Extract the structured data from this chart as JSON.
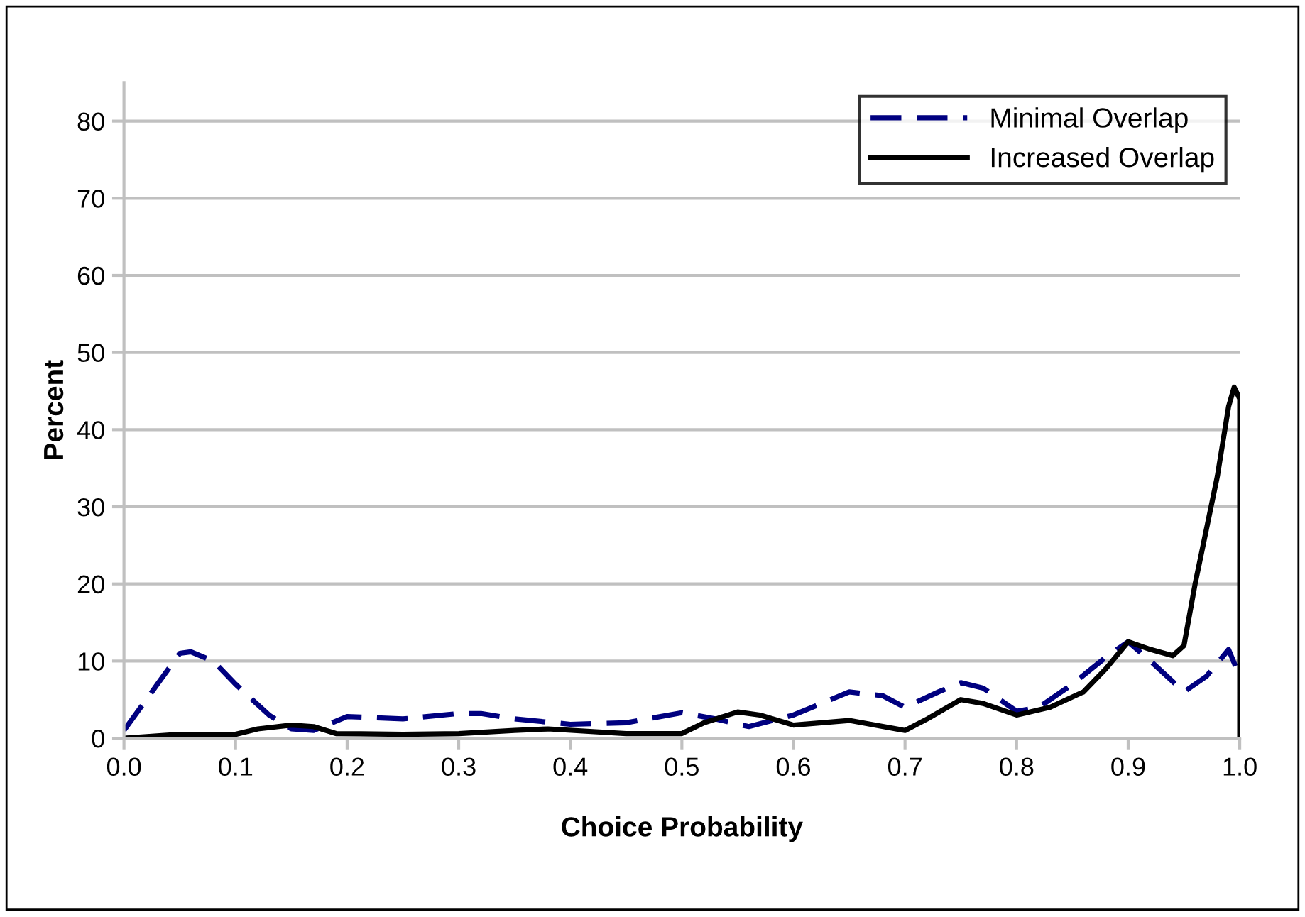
{
  "chart_data": {
    "type": "line",
    "xlabel": "Choice Probability",
    "ylabel": "Percent",
    "xlim": [
      0,
      1
    ],
    "ylim": [
      0,
      85
    ],
    "xticks": [
      {
        "value": 0,
        "label": "0.0"
      },
      {
        "value": 0.1,
        "label": "0.1"
      },
      {
        "value": 0.2,
        "label": "0.2"
      },
      {
        "value": 0.3,
        "label": "0.3"
      },
      {
        "value": 0.4,
        "label": "0.4"
      },
      {
        "value": 0.5,
        "label": "0.5"
      },
      {
        "value": 0.6,
        "label": "0.6"
      },
      {
        "value": 0.7,
        "label": "0.7"
      },
      {
        "value": 0.8,
        "label": "0.8"
      },
      {
        "value": 0.9,
        "label": "0.9"
      },
      {
        "value": 1,
        "label": "1.0"
      }
    ],
    "yticks": [
      0,
      10,
      20,
      30,
      40,
      50,
      60,
      70,
      80
    ],
    "grid": "y",
    "legend": "top right",
    "marker": "none",
    "series": [
      {
        "name": "Minimal Overlap",
        "color": "#000080",
        "line_style": "dashed",
        "x": [
          0,
          0.03,
          0.05,
          0.06,
          0.08,
          0.1,
          0.13,
          0.15,
          0.17,
          0.2,
          0.25,
          0.3,
          0.32,
          0.35,
          0.4,
          0.45,
          0.5,
          0.53,
          0.56,
          0.6,
          0.65,
          0.68,
          0.7,
          0.73,
          0.75,
          0.77,
          0.8,
          0.82,
          0.85,
          0.88,
          0.9,
          0.92,
          0.95,
          0.97,
          0.99,
          1.0
        ],
        "values": [
          1,
          7,
          11,
          11.2,
          10,
          7,
          3,
          1.2,
          1,
          2.8,
          2.5,
          3.2,
          3.2,
          2.5,
          1.8,
          2,
          3.3,
          2.5,
          1.5,
          3,
          6,
          5.5,
          4,
          6,
          7.2,
          6.5,
          3.5,
          4,
          7,
          10.5,
          12.5,
          10,
          6,
          8,
          11.5,
          8
        ]
      },
      {
        "name": "Increased Overlap",
        "color": "#000000",
        "line_style": "solid",
        "x": [
          0,
          0.05,
          0.1,
          0.12,
          0.15,
          0.17,
          0.19,
          0.25,
          0.3,
          0.35,
          0.38,
          0.45,
          0.5,
          0.52,
          0.55,
          0.57,
          0.6,
          0.65,
          0.7,
          0.72,
          0.75,
          0.77,
          0.8,
          0.83,
          0.86,
          0.88,
          0.9,
          0.92,
          0.94,
          0.95,
          0.96,
          0.98,
          0.99,
          0.995,
          1.0,
          1.0
        ],
        "values": [
          0,
          0.5,
          0.5,
          1.2,
          1.7,
          1.5,
          0.6,
          0.5,
          0.6,
          1,
          1.2,
          0.6,
          0.6,
          2,
          3.4,
          3,
          1.7,
          2.3,
          1,
          2.5,
          5,
          4.5,
          3,
          4,
          6,
          9,
          12.5,
          11.5,
          10.7,
          12,
          20,
          34,
          43,
          45.5,
          44,
          0
        ]
      }
    ]
  }
}
